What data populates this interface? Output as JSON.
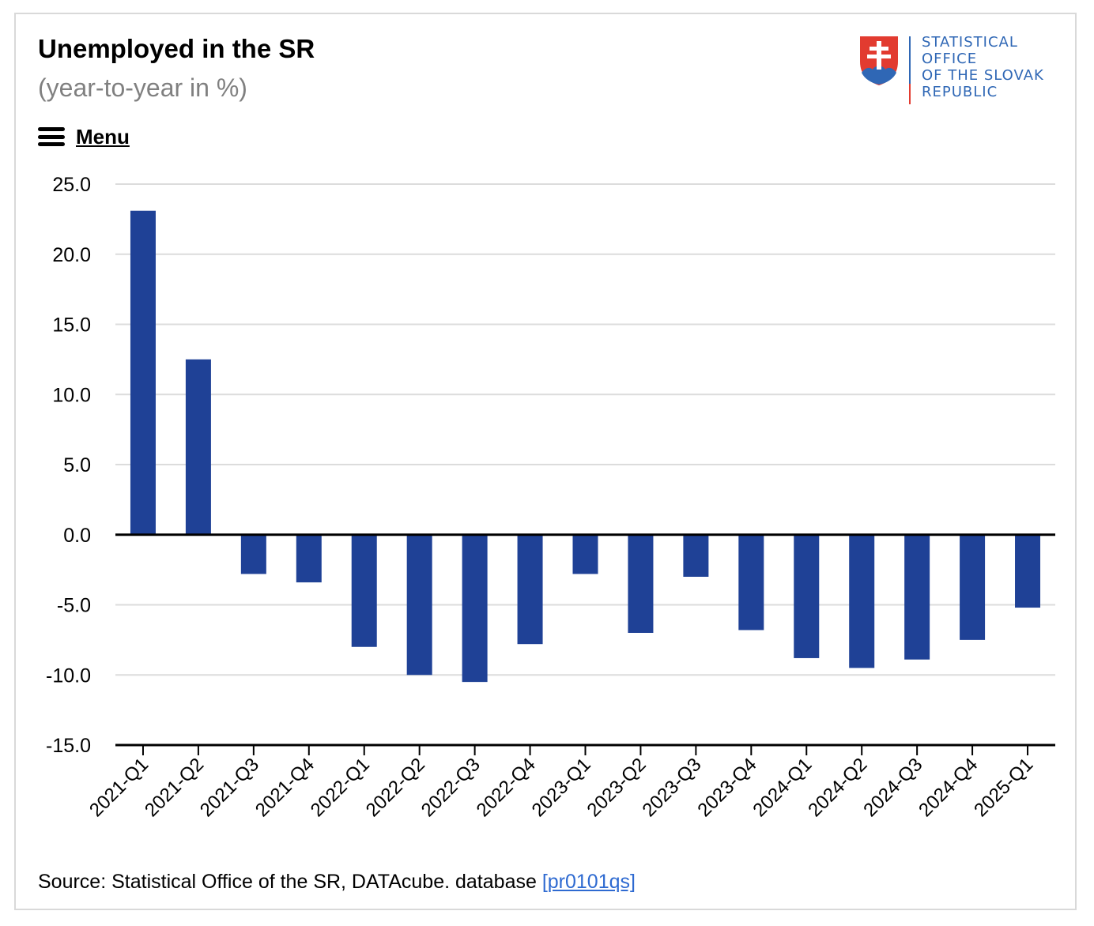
{
  "header": {
    "title": "Unemployed in the SR",
    "subtitle": "(year-to-year in %)"
  },
  "menu": {
    "label": "Menu",
    "icon": "hamburger-menu-icon"
  },
  "logo": {
    "lines": [
      "STATISTICAL",
      "OFFICE",
      "OF THE SLOVAK",
      "REPUBLIC"
    ],
    "icon": "slovak-coat-of-arms-icon",
    "text_color": "#2f67b5",
    "accent_color": "#e23b30"
  },
  "source": {
    "text": "Source: Statistical Office of the SR, DATAcube. database ",
    "link_text": "[pr0101qs]"
  },
  "colors": {
    "bar": "#1f4196",
    "grid": "#dcdcdc",
    "axis": "#000000",
    "link": "#2e6ad1"
  },
  "chart_data": {
    "type": "bar",
    "categories": [
      "2021-Q1",
      "2021-Q2",
      "2021-Q3",
      "2021-Q4",
      "2022-Q1",
      "2022-Q2",
      "2022-Q3",
      "2022-Q4",
      "2023-Q1",
      "2023-Q2",
      "2023-Q3",
      "2023-Q4",
      "2024-Q1",
      "2024-Q2",
      "2024-Q3",
      "2024-Q4",
      "2025-Q1"
    ],
    "values": [
      23.1,
      12.5,
      -2.8,
      -3.4,
      -8.0,
      -10.0,
      -10.5,
      -7.8,
      -2.8,
      -7.0,
      -3.0,
      -6.8,
      -8.8,
      -9.5,
      -8.9,
      -7.5,
      -5.2
    ],
    "y_ticks": [
      "25.0",
      "20.0",
      "15.0",
      "10.0",
      "5.0",
      "0.0",
      "-5.0",
      "-10.0",
      "-15.0"
    ],
    "ylim": [
      -15,
      25
    ],
    "grid": true,
    "legend": "none",
    "title": "Unemployed in the SR",
    "subtitle": "(year-to-year in %)"
  }
}
